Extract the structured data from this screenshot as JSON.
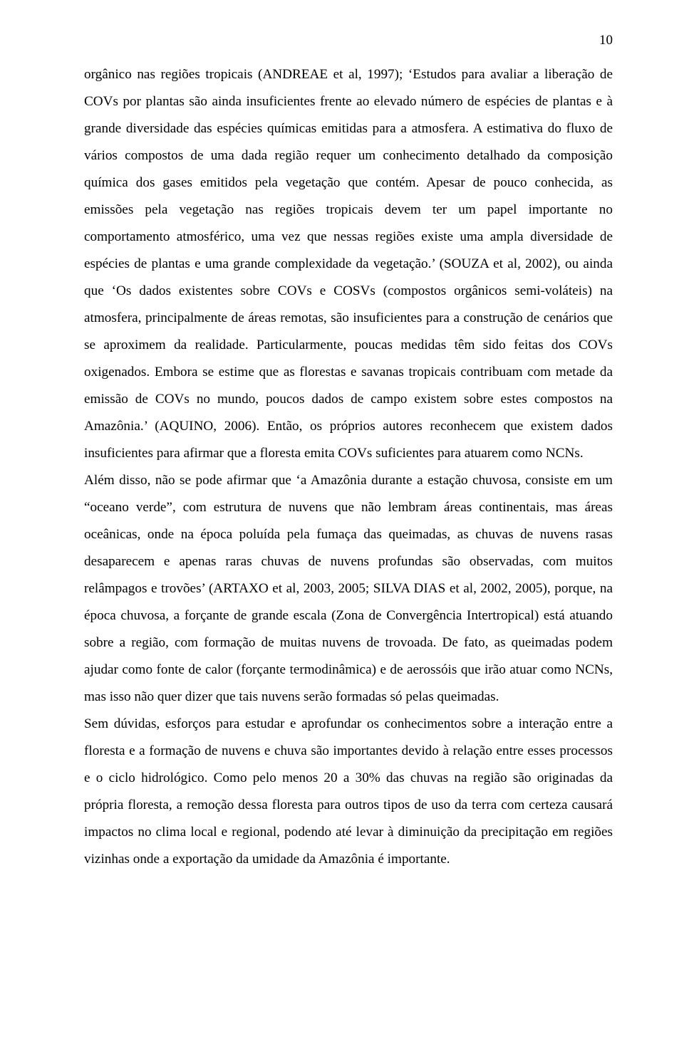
{
  "page_number": "10",
  "paragraphs": [
    "orgânico nas regiões tropicais (ANDREAE et al, 1997); ‘Estudos para avaliar a liberação de COVs por plantas são ainda insuficientes frente ao elevado número de espécies de plantas e à grande diversidade das espécies químicas emitidas para a atmosfera. A estimativa do fluxo de vários compostos de uma dada região requer um conhecimento detalhado da composição química dos gases emitidos pela vegetação que contém. Apesar de pouco conhecida, as emissões pela vegetação nas regiões tropicais devem ter um papel importante no comportamento atmosférico, uma vez que nessas regiões existe uma ampla diversidade de espécies de plantas e uma grande complexidade da vegetação.’ (SOUZA et al, 2002), ou ainda que ‘Os dados existentes sobre COVs e COSVs (compostos orgânicos semi-voláteis) na atmosfera, principalmente de áreas remotas, são insuficientes para a construção de cenários que se aproximem da realidade. Particularmente, poucas medidas têm sido feitas dos COVs oxigenados. Embora se estime que as florestas e savanas tropicais contribuam com metade da emissão de COVs no mundo, poucos dados de campo existem sobre estes compostos na Amazônia.’ (AQUINO, 2006).  Então, os próprios autores reconhecem que existem dados insuficientes para afirmar que a floresta emita COVs suficientes para atuarem como NCNs.",
    "Além disso, não se pode afirmar que ‘a Amazônia durante a estação chuvosa, consiste em um “oceano verde”, com estrutura de nuvens que não lembram áreas continentais, mas áreas oceânicas, onde na época poluída pela fumaça das queimadas, as chuvas de nuvens rasas desaparecem e apenas raras chuvas de nuvens profundas são observadas, com muitos relâmpagos e trovões’ (ARTAXO et al, 2003, 2005; SILVA DIAS et al, 2002, 2005), porque, na época chuvosa, a forçante de grande escala (Zona de Convergência Intertropical) está atuando sobre a região, com formação de muitas nuvens de trovoada. De fato, as queimadas podem ajudar como fonte de calor (forçante termodinâmica) e de aerossóis que irão atuar como NCNs, mas isso não quer dizer que tais nuvens serão formadas só pelas queimadas.",
    "Sem dúvidas, esforços para estudar e aprofundar os conhecimentos sobre a interação entre a floresta e a formação de nuvens e chuva são importantes devido à relação entre esses processos e o ciclo hidrológico.  Como pelo menos 20 a 30% das chuvas na região são originadas da própria floresta, a remoção dessa floresta para outros tipos de uso da terra com certeza causará impactos no clima local e regional, podendo até levar à diminuição da precipitação em regiões vizinhas onde a exportação da umidade da Amazônia é importante."
  ]
}
